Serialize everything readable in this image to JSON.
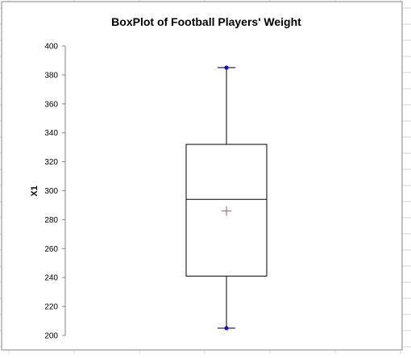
{
  "chart_data": {
    "type": "box",
    "title": "BoxPlot of Football Players' Weight",
    "ylabel": "X1",
    "xlabel": "",
    "ylim": [
      200,
      400
    ],
    "yticks": [
      200,
      220,
      240,
      260,
      280,
      300,
      320,
      340,
      360,
      380,
      400
    ],
    "grid": false,
    "series": [
      {
        "min": 205,
        "q1": 241,
        "median": 294,
        "q3": 332,
        "max": 385,
        "mean": 286
      }
    ],
    "colors": {
      "whisker_point": "#0000ff",
      "mean_marker": "#c0504d",
      "box": "#000000"
    }
  }
}
